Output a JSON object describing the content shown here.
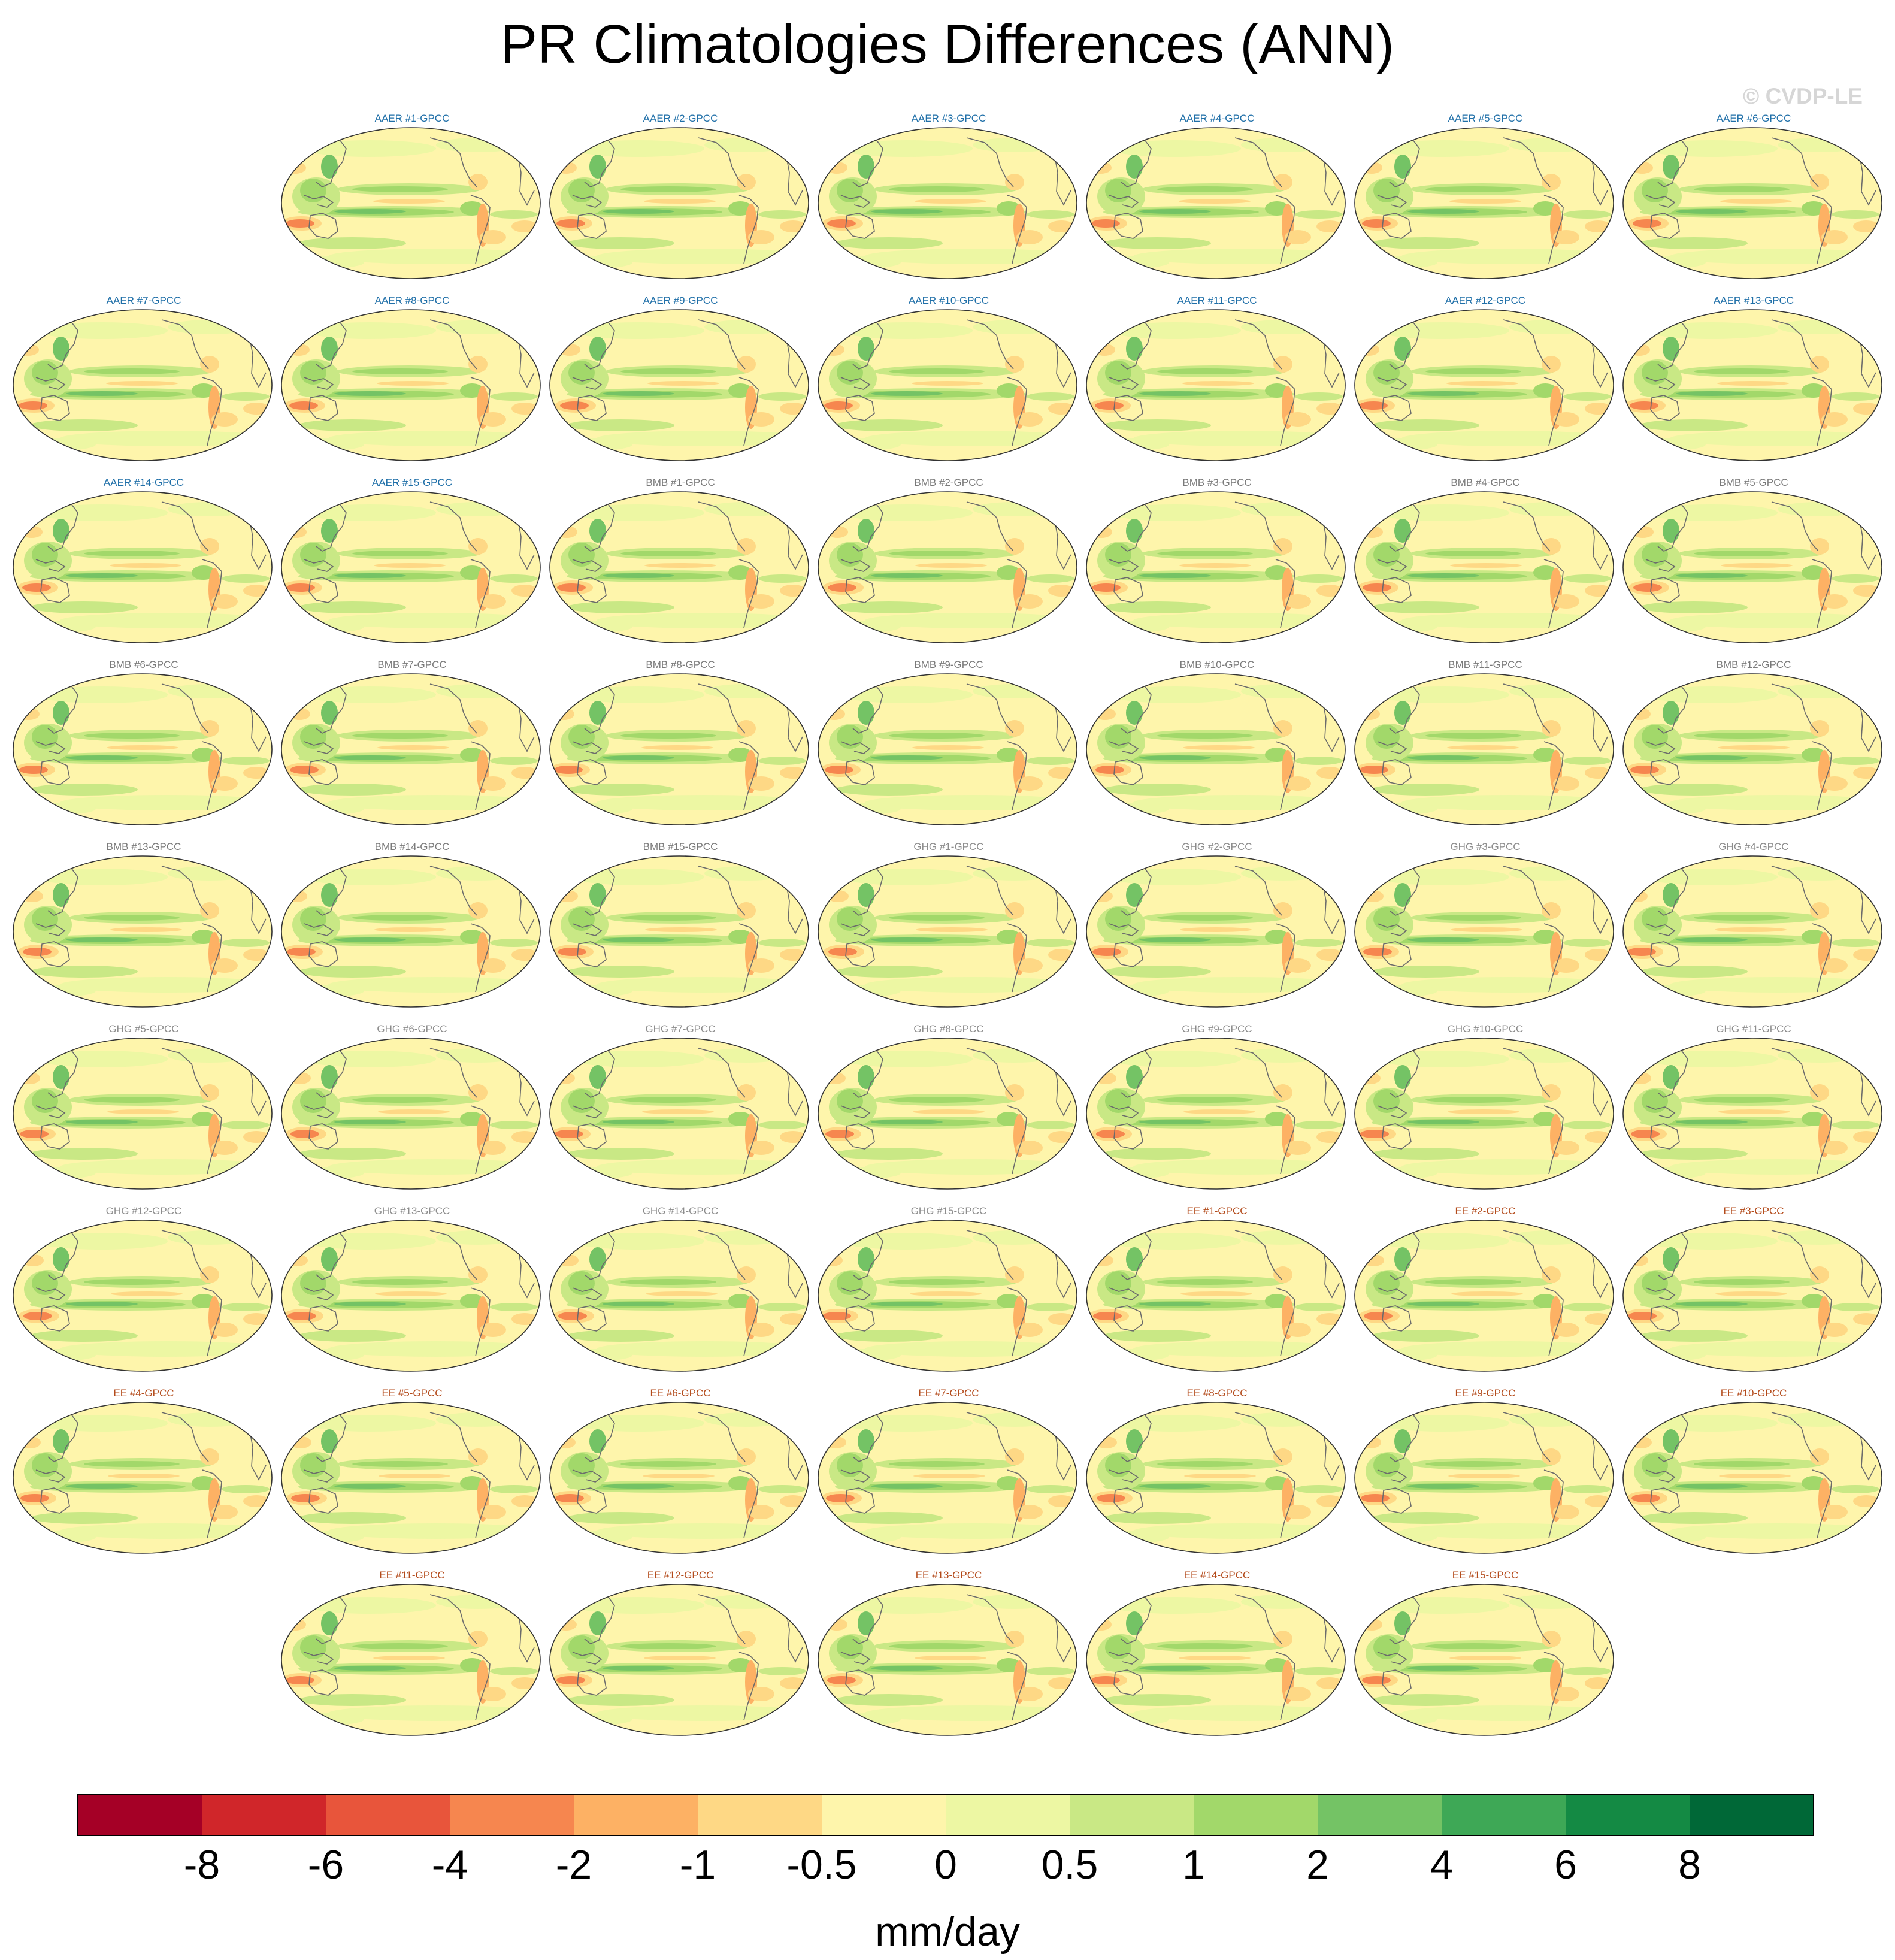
{
  "title": "PR Climatologies Differences (ANN)",
  "watermark": "© CVDP-LE",
  "colorbar": {
    "units": "mm/day",
    "tick_labels": [
      "-8",
      "-6",
      "-4",
      "-2",
      "-1",
      "-0.5",
      "0",
      "0.5",
      "1",
      "2",
      "4",
      "6",
      "8"
    ],
    "colors": [
      "#a50026",
      "#d0262a",
      "#e8553b",
      "#f6864f",
      "#fdb164",
      "#fed885",
      "#fef5ab",
      "#edf7a3",
      "#c9e885",
      "#a2d86a",
      "#74c365",
      "#3ea856",
      "#148a44",
      "#006837"
    ]
  },
  "chart_data": {
    "type": "heatmap",
    "title": "PR Climatologies Differences (ANN)",
    "variable": "PR",
    "season": "ANN",
    "units": "mm/day",
    "levels": [
      -8,
      -6,
      -4,
      -2,
      -1,
      -0.5,
      0,
      0.5,
      1,
      2,
      4,
      6,
      8
    ],
    "layout": {
      "rows": 9,
      "columns": 7
    },
    "groups": [
      {
        "name": "AAER",
        "color": "#1f6fa8"
      },
      {
        "name": "BMB",
        "color": "#7a7a7a"
      },
      {
        "name": "GHG",
        "color": "#8c8c8c"
      },
      {
        "name": "EE",
        "color": "#b34a1a"
      }
    ],
    "panels": [
      {
        "label": "AAER #1-GPCC",
        "group": 0,
        "row": 0,
        "col": 1
      },
      {
        "label": "AAER #2-GPCC",
        "group": 0,
        "row": 0,
        "col": 2
      },
      {
        "label": "AAER #3-GPCC",
        "group": 0,
        "row": 0,
        "col": 3
      },
      {
        "label": "AAER #4-GPCC",
        "group": 0,
        "row": 0,
        "col": 4
      },
      {
        "label": "AAER #5-GPCC",
        "group": 0,
        "row": 0,
        "col": 5
      },
      {
        "label": "AAER #6-GPCC",
        "group": 0,
        "row": 0,
        "col": 6
      },
      {
        "label": "AAER #7-GPCC",
        "group": 0,
        "row": 1,
        "col": 0
      },
      {
        "label": "AAER #8-GPCC",
        "group": 0,
        "row": 1,
        "col": 1
      },
      {
        "label": "AAER #9-GPCC",
        "group": 0,
        "row": 1,
        "col": 2
      },
      {
        "label": "AAER #10-GPCC",
        "group": 0,
        "row": 1,
        "col": 3
      },
      {
        "label": "AAER #11-GPCC",
        "group": 0,
        "row": 1,
        "col": 4
      },
      {
        "label": "AAER #12-GPCC",
        "group": 0,
        "row": 1,
        "col": 5
      },
      {
        "label": "AAER #13-GPCC",
        "group": 0,
        "row": 1,
        "col": 6
      },
      {
        "label": "AAER #14-GPCC",
        "group": 0,
        "row": 2,
        "col": 0
      },
      {
        "label": "AAER #15-GPCC",
        "group": 0,
        "row": 2,
        "col": 1
      },
      {
        "label": "BMB #1-GPCC",
        "group": 1,
        "row": 2,
        "col": 2
      },
      {
        "label": "BMB #2-GPCC",
        "group": 1,
        "row": 2,
        "col": 3
      },
      {
        "label": "BMB #3-GPCC",
        "group": 1,
        "row": 2,
        "col": 4
      },
      {
        "label": "BMB #4-GPCC",
        "group": 1,
        "row": 2,
        "col": 5
      },
      {
        "label": "BMB #5-GPCC",
        "group": 1,
        "row": 2,
        "col": 6
      },
      {
        "label": "BMB #6-GPCC",
        "group": 1,
        "row": 3,
        "col": 0
      },
      {
        "label": "BMB #7-GPCC",
        "group": 1,
        "row": 3,
        "col": 1
      },
      {
        "label": "BMB #8-GPCC",
        "group": 1,
        "row": 3,
        "col": 2
      },
      {
        "label": "BMB #9-GPCC",
        "group": 1,
        "row": 3,
        "col": 3
      },
      {
        "label": "BMB #10-GPCC",
        "group": 1,
        "row": 3,
        "col": 4
      },
      {
        "label": "BMB #11-GPCC",
        "group": 1,
        "row": 3,
        "col": 5
      },
      {
        "label": "BMB #12-GPCC",
        "group": 1,
        "row": 3,
        "col": 6
      },
      {
        "label": "BMB #13-GPCC",
        "group": 1,
        "row": 4,
        "col": 0
      },
      {
        "label": "BMB #14-GPCC",
        "group": 1,
        "row": 4,
        "col": 1
      },
      {
        "label": "BMB #15-GPCC",
        "group": 1,
        "row": 4,
        "col": 2
      },
      {
        "label": "GHG #1-GPCC",
        "group": 2,
        "row": 4,
        "col": 3
      },
      {
        "label": "GHG #2-GPCC",
        "group": 2,
        "row": 4,
        "col": 4
      },
      {
        "label": "GHG #3-GPCC",
        "group": 2,
        "row": 4,
        "col": 5
      },
      {
        "label": "GHG #4-GPCC",
        "group": 2,
        "row": 4,
        "col": 6
      },
      {
        "label": "GHG #5-GPCC",
        "group": 2,
        "row": 5,
        "col": 0
      },
      {
        "label": "GHG #6-GPCC",
        "group": 2,
        "row": 5,
        "col": 1
      },
      {
        "label": "GHG #7-GPCC",
        "group": 2,
        "row": 5,
        "col": 2
      },
      {
        "label": "GHG #8-GPCC",
        "group": 2,
        "row": 5,
        "col": 3
      },
      {
        "label": "GHG #9-GPCC",
        "group": 2,
        "row": 5,
        "col": 4
      },
      {
        "label": "GHG #10-GPCC",
        "group": 2,
        "row": 5,
        "col": 5
      },
      {
        "label": "GHG #11-GPCC",
        "group": 2,
        "row": 5,
        "col": 6
      },
      {
        "label": "GHG #12-GPCC",
        "group": 2,
        "row": 6,
        "col": 0
      },
      {
        "label": "GHG #13-GPCC",
        "group": 2,
        "row": 6,
        "col": 1
      },
      {
        "label": "GHG #14-GPCC",
        "group": 2,
        "row": 6,
        "col": 2
      },
      {
        "label": "GHG #15-GPCC",
        "group": 2,
        "row": 6,
        "col": 3
      },
      {
        "label": "EE #1-GPCC",
        "group": 3,
        "row": 6,
        "col": 4
      },
      {
        "label": "EE #2-GPCC",
        "group": 3,
        "row": 6,
        "col": 5
      },
      {
        "label": "EE #3-GPCC",
        "group": 3,
        "row": 6,
        "col": 6
      },
      {
        "label": "EE #4-GPCC",
        "group": 3,
        "row": 7,
        "col": 0
      },
      {
        "label": "EE #5-GPCC",
        "group": 3,
        "row": 7,
        "col": 1
      },
      {
        "label": "EE #6-GPCC",
        "group": 3,
        "row": 7,
        "col": 2
      },
      {
        "label": "EE #7-GPCC",
        "group": 3,
        "row": 7,
        "col": 3
      },
      {
        "label": "EE #8-GPCC",
        "group": 3,
        "row": 7,
        "col": 4
      },
      {
        "label": "EE #9-GPCC",
        "group": 3,
        "row": 7,
        "col": 5
      },
      {
        "label": "EE #10-GPCC",
        "group": 3,
        "row": 7,
        "col": 6
      },
      {
        "label": "EE #11-GPCC",
        "group": 3,
        "row": 8,
        "col": 1
      },
      {
        "label": "EE #12-GPCC",
        "group": 3,
        "row": 8,
        "col": 2
      },
      {
        "label": "EE #13-GPCC",
        "group": 3,
        "row": 8,
        "col": 3
      },
      {
        "label": "EE #14-GPCC",
        "group": 3,
        "row": 8,
        "col": 4
      },
      {
        "label": "EE #15-GPCC",
        "group": 3,
        "row": 8,
        "col": 5
      }
    ]
  }
}
